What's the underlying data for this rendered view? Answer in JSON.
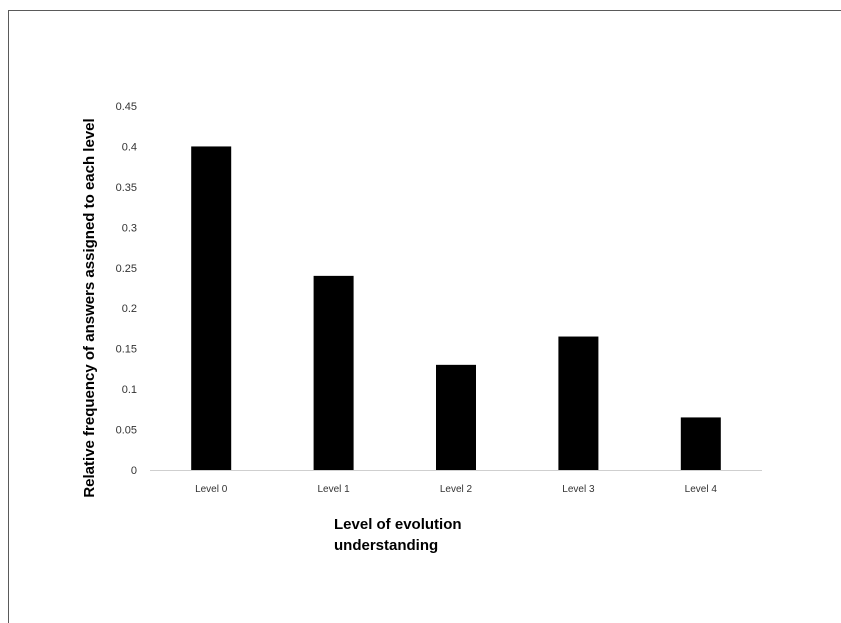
{
  "chart_data": {
    "type": "bar",
    "categories": [
      "Level 0",
      "Level 1",
      "Level 2",
      "Level 3",
      "Level 4"
    ],
    "values": [
      0.4,
      0.24,
      0.13,
      0.165,
      0.065
    ],
    "title": "",
    "xlabel": [
      "Level of evolution",
      "understanding"
    ],
    "ylabel": "Relative frequency of answers assigned to each level",
    "ylim": [
      0,
      0.45
    ],
    "yticks": [
      0,
      0.05,
      0.1,
      0.15,
      0.2,
      0.25,
      0.3,
      0.35,
      0.4,
      0.45
    ],
    "ytick_labels": [
      "0",
      "0.05",
      "0.1",
      "0.15",
      "0.2",
      "0.25",
      "0.3",
      "0.35",
      "0.4",
      "0.45"
    ],
    "grid": false,
    "legend": "none",
    "colors": {
      "bar": "#000000",
      "axis": "#cfcfcf",
      "frame": "#5a5a5a"
    }
  }
}
